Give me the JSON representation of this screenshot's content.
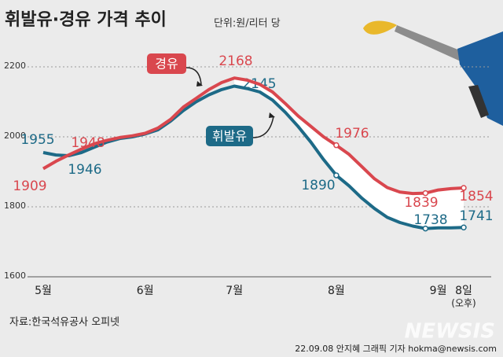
{
  "chart_data": {
    "type": "line",
    "title": "휘발유·경유 가격 추이",
    "subtitle": "단위:원/리터 당",
    "categories": [
      "5월",
      null,
      null,
      null,
      null,
      null,
      null,
      null,
      "6월",
      null,
      null,
      null,
      null,
      null,
      null,
      "7월",
      null,
      null,
      null,
      null,
      null,
      null,
      null,
      "8월",
      null,
      null,
      null,
      null,
      null,
      null,
      null,
      "9월",
      null,
      "8일"
    ],
    "x_note": "(오후)",
    "series": [
      {
        "name": "휘발유",
        "color": "#1d6a87",
        "values": [
          1955,
          1948,
          1946,
          1955,
          1970,
          1985,
          1995,
          2000,
          2008,
          2020,
          2045,
          2075,
          2100,
          2120,
          2135,
          2145,
          2138,
          2128,
          2105,
          2070,
          2030,
          1985,
          1935,
          1890,
          1860,
          1825,
          1795,
          1770,
          1755,
          1745,
          1738,
          1740,
          1740,
          1741
        ],
        "labeled": [
          0,
          2,
          15,
          23,
          30,
          33
        ],
        "markers": [
          23,
          30,
          33
        ]
      },
      {
        "name": "경유",
        "color": "#d9474e",
        "values": [
          1909,
          1930,
          1948,
          1965,
          1980,
          1990,
          1998,
          2003,
          2010,
          2025,
          2050,
          2085,
          2110,
          2135,
          2155,
          2168,
          2162,
          2150,
          2128,
          2095,
          2060,
          2030,
          2000,
          1976,
          1950,
          1915,
          1880,
          1855,
          1842,
          1838,
          1839,
          1848,
          1852,
          1854
        ],
        "labeled": [
          0,
          2,
          15,
          23,
          30,
          33
        ],
        "markers": [
          23,
          30,
          33
        ]
      }
    ],
    "ylim": [
      1600,
      2200
    ],
    "yticks": [
      1600,
      1800,
      2000,
      2200
    ],
    "grid": true,
    "source": "자료:한국석유공사 오피넷",
    "credit": "22.09.08 안지혜 그래픽 기자 hokma@newsis.com",
    "watermark": "NEWSIS"
  }
}
